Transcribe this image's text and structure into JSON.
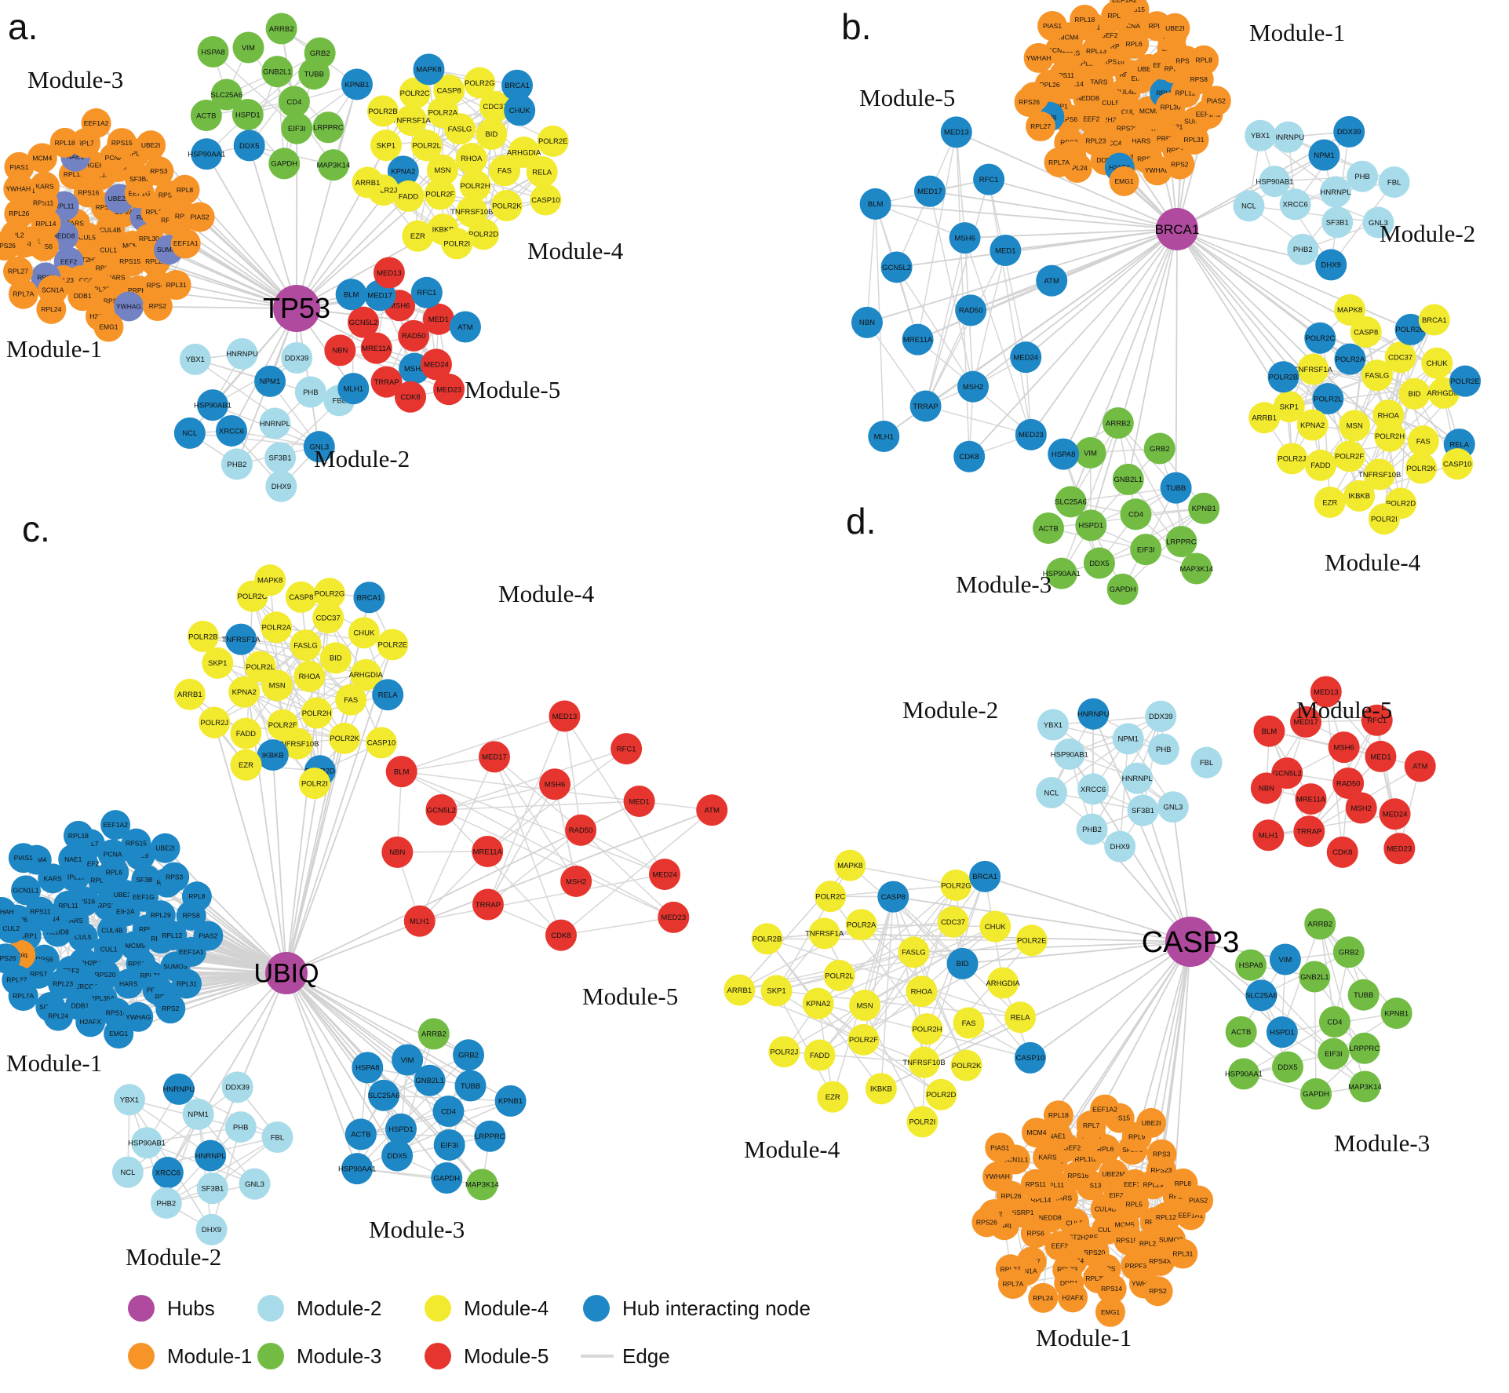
{
  "figure": {
    "panel_letters": [
      "a.",
      "b.",
      "c.",
      "d."
    ],
    "hubs": [
      "TP53",
      "BRCA1",
      "UBIQ",
      "CASP3"
    ]
  },
  "colors": {
    "hub": "#b04a9e",
    "module1": "#f79428",
    "module2": "#a8dbe9",
    "module3": "#72bc44",
    "module4": "#f2ea2e",
    "module5": "#e6352f",
    "hub_interacting": "#1e87c5",
    "module1_interacting": "#7282c3",
    "edge": "#d7d7d7"
  },
  "gene_sets": {
    "module1": [
      "CUL4B",
      "CUL5",
      "RPS13",
      "CUL1",
      "TARS",
      "EIF2A",
      "HIST2H2BE",
      "RPS16",
      "MCM5",
      "NEDD8",
      "UBE2M",
      "RPS20",
      "RPL11",
      "RPL5",
      "EEF2",
      "RPL10A",
      "RPS15A",
      "RPL14",
      "EEF1G",
      "ERCC4",
      "RPL13",
      "RPL30",
      "RPS6",
      "RPL6",
      "HARS",
      "RPS11",
      "RPL29",
      "RPL23",
      "ARHGEF2",
      "RPL21",
      "SSRP1",
      "SF3B3",
      "RPL35A",
      "KARS",
      "RPL12",
      "RPS7",
      "PCNA",
      "PRPF3",
      "RPL26",
      "RPS23",
      "DDB1",
      "NAE1",
      "SUMO3",
      "Ubiq",
      "RPL9",
      "RPS14",
      "GCN1L1",
      "RPS8",
      "SCN1A",
      "RPL7",
      "RPS4X",
      "CUL2",
      "RPS3",
      "H2AFX",
      "MCM4",
      "EEF1A1",
      "RPL27",
      "RPS15",
      "YWHAG",
      "YWHAH",
      "RPL8",
      "RPL24",
      "RPL18",
      "RPL31",
      "RPS26",
      "UBE2I",
      "EMG1",
      "PIAS1",
      "PIAS2",
      "RPL7A",
      "EEF1A2",
      "RPS2"
    ],
    "module2": [
      "HNRNPL",
      "XRCC6",
      "NPM1",
      "SF3B1",
      "HSP90AB1",
      "PHB",
      "PHB2",
      "HNRNPU",
      "GNL3",
      "NCL",
      "DDX39",
      "DHX9",
      "YBX1",
      "FBL"
    ],
    "module3": [
      "CD4",
      "HSPD1",
      "GNB2L1",
      "EIF3I",
      "SLC25A6",
      "TUBB",
      "DDX5",
      "VIM",
      "LRPPRC",
      "ACTB",
      "GRB2",
      "GAPDH",
      "HSPA8",
      "KPNB1",
      "HSP90AA1",
      "ARRB2",
      "MAP3K14"
    ],
    "module4": [
      "RHOA",
      "MSN",
      "FASLG",
      "POLR2H",
      "POLR2L",
      "BID",
      "POLR2F",
      "POLR2A",
      "FAS",
      "KPNA2",
      "CDC37",
      "TNFRSF10B",
      "TNFRSF1A",
      "ARHGDIA",
      "FADD",
      "CASP8",
      "POLR2K",
      "SKP1",
      "CHUK",
      "IKBKB",
      "POLR2C",
      "RELA",
      "POLR2J",
      "POLR2G",
      "POLR2D",
      "POLR2B",
      "POLR2E",
      "EZR",
      "MAPK8",
      "CASP10",
      "ARRB1",
      "BRCA1",
      "POLR2I"
    ],
    "module5": [
      "RAD50",
      "MRE11A",
      "MSH6",
      "MSH2",
      "GCN5L2",
      "MED1",
      "TRRAP",
      "MED17",
      "MED24",
      "NBN",
      "RFC1",
      "CDK8",
      "BLM",
      "ATM",
      "MLH1",
      "MED13",
      "MED23"
    ]
  },
  "panels": [
    {
      "id": "a",
      "letter": "a.",
      "hub": "TP53",
      "modules": [
        {
          "name": "Module-1",
          "set": "module1",
          "color_key": "module1",
          "hi_color_key": "module1_interacting",
          "hub_interacting": [
            "RPL11",
            "RPL5",
            "EEF2",
            "UBE2M",
            "NEDD8",
            "RPS7",
            "NAE1",
            "SUMO3",
            "YWHAG"
          ]
        },
        {
          "name": "Module-2",
          "set": "module2",
          "color_key": "module2",
          "hub_interacting": [
            "XRCC6",
            "NPM1",
            "HSP90AB1",
            "GNL3",
            "NCL"
          ]
        },
        {
          "name": "Module-3",
          "set": "module3",
          "color_key": "module3",
          "hub_interacting": [
            "DDX5",
            "KPNB1",
            "HSP90AA1"
          ]
        },
        {
          "name": "Module-4",
          "set": "module4",
          "color_key": "module4",
          "hub_interacting": [
            "KPNA2",
            "CHUK",
            "MAPK8",
            "BRCA1"
          ]
        },
        {
          "name": "Module-5",
          "set": "module5",
          "color_key": "module5",
          "hub_interacting": [
            "MSH2",
            "MED17",
            "ATM",
            "BLM",
            "MLH1",
            "RFC1"
          ]
        }
      ]
    },
    {
      "id": "b",
      "letter": "b.",
      "hub": "BRCA1",
      "modules": [
        {
          "name": "Module-1",
          "set": "module1",
          "color_key": "module1",
          "hub_interacting": [
            "H2AFX",
            "Ubiq",
            "RPL5"
          ]
        },
        {
          "name": "Module-2",
          "set": "module2",
          "color_key": "module2",
          "hub_interacting": [
            "NPM1",
            "DHX9",
            "DDX39"
          ]
        },
        {
          "name": "Module-3",
          "set": "module3",
          "color_key": "module3",
          "hub_interacting": [
            "TUBB",
            "HSPA8"
          ]
        },
        {
          "name": "Module-4",
          "set": "module4",
          "color_key": "module4",
          "hub_interacting": [
            "POLR2A",
            "POLR2B",
            "POLR2C",
            "POLR2L",
            "POLR2E",
            "POLR2G",
            "RELA"
          ]
        },
        {
          "name": "Module-5",
          "set": "module5",
          "color_key": "module5",
          "hub_interacting_all": true
        }
      ]
    },
    {
      "id": "c",
      "letter": "c.",
      "hub": "UBIQ",
      "modules": [
        {
          "name": "Module-1",
          "set": "module1",
          "color_key": "module1",
          "hub_interacting_all": true,
          "except": [
            "Ubiq"
          ]
        },
        {
          "name": "Module-2",
          "set": "module2",
          "color_key": "module2",
          "hub_interacting": [
            "HNRNPL",
            "HNRNPU",
            "XRCC6"
          ]
        },
        {
          "name": "Module-3",
          "set": "module3",
          "color_key": "module3",
          "hub_interacting_all": true,
          "except": [
            "ARRB2",
            "MAP3K14"
          ]
        },
        {
          "name": "Module-4",
          "set": "module4",
          "color_key": "module4",
          "hub_interacting": [
            "BRCA1",
            "POLR2D",
            "IKBKB",
            "TNFRSF1A",
            "RELA"
          ]
        },
        {
          "name": "Module-5",
          "set": "module5",
          "color_key": "module5",
          "hub_interacting": []
        }
      ]
    },
    {
      "id": "d",
      "letter": "d.",
      "hub": "CASP3",
      "modules": [
        {
          "name": "Module-1",
          "set": "module1",
          "color_key": "module1",
          "hub_interacting": []
        },
        {
          "name": "Module-2",
          "set": "module2",
          "color_key": "module2",
          "hub_interacting": [
            "HNRNPU"
          ]
        },
        {
          "name": "Module-3",
          "set": "module3",
          "color_key": "module3",
          "hub_interacting": [
            "VIM",
            "SLC25A6",
            "HSPD1"
          ]
        },
        {
          "name": "Module-4",
          "set": "module4",
          "color_key": "module4",
          "hub_interacting": [
            "BRCA1",
            "BID",
            "CASP10",
            "CASP8"
          ]
        },
        {
          "name": "Module-5",
          "set": "module5",
          "color_key": "module5",
          "hub_interacting": []
        }
      ]
    }
  ],
  "legend": {
    "items": [
      {
        "label": "Hubs",
        "color_key": "hub",
        "type": "circle"
      },
      {
        "label": "Module-1",
        "color_key": "module1",
        "type": "circle"
      },
      {
        "label": "Module-2",
        "color_key": "module2",
        "type": "circle"
      },
      {
        "label": "Module-3",
        "color_key": "module3",
        "type": "circle"
      },
      {
        "label": "Module-4",
        "color_key": "module4",
        "type": "circle"
      },
      {
        "label": "Module-5",
        "color_key": "module5",
        "type": "circle"
      },
      {
        "label": "Hub interacting node",
        "color_key": "hub_interacting",
        "type": "circle"
      },
      {
        "label": "Edge",
        "color_key": "edge",
        "type": "edge"
      }
    ]
  }
}
